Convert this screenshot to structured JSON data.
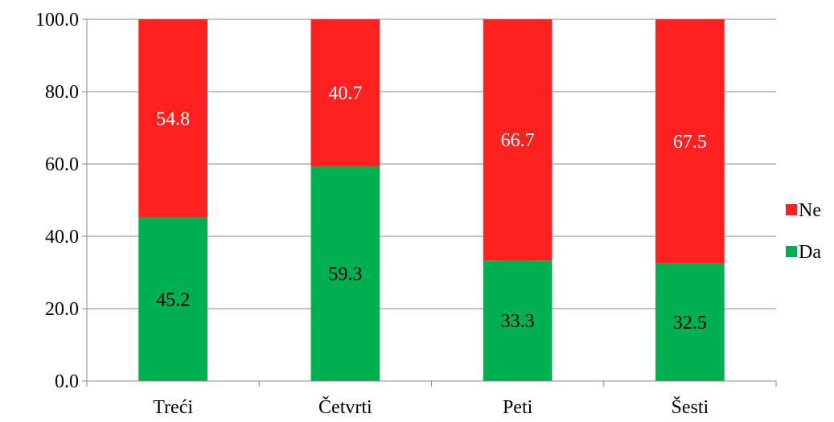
{
  "chart_data": {
    "type": "bar",
    "stacked": true,
    "categories": [
      "Treći",
      "Četvrti",
      "Peti",
      "Šesti"
    ],
    "series": [
      {
        "name": "Da",
        "color": "#00B050",
        "label_color": "#000000",
        "values": [
          45.2,
          59.3,
          33.3,
          32.5
        ]
      },
      {
        "name": "Ne",
        "color": "#FF2020",
        "label_color": "#FFFFFF",
        "values": [
          54.8,
          40.7,
          66.7,
          67.5
        ]
      }
    ],
    "ylim": [
      0,
      100
    ],
    "yticks": [
      "0.0",
      "20.0",
      "40.0",
      "60.0",
      "80.0",
      "100.0"
    ],
    "grid": true,
    "legend": {
      "placement": "right",
      "order": [
        "Ne",
        "Da"
      ]
    },
    "title": "",
    "xlabel": "",
    "ylabel": ""
  }
}
